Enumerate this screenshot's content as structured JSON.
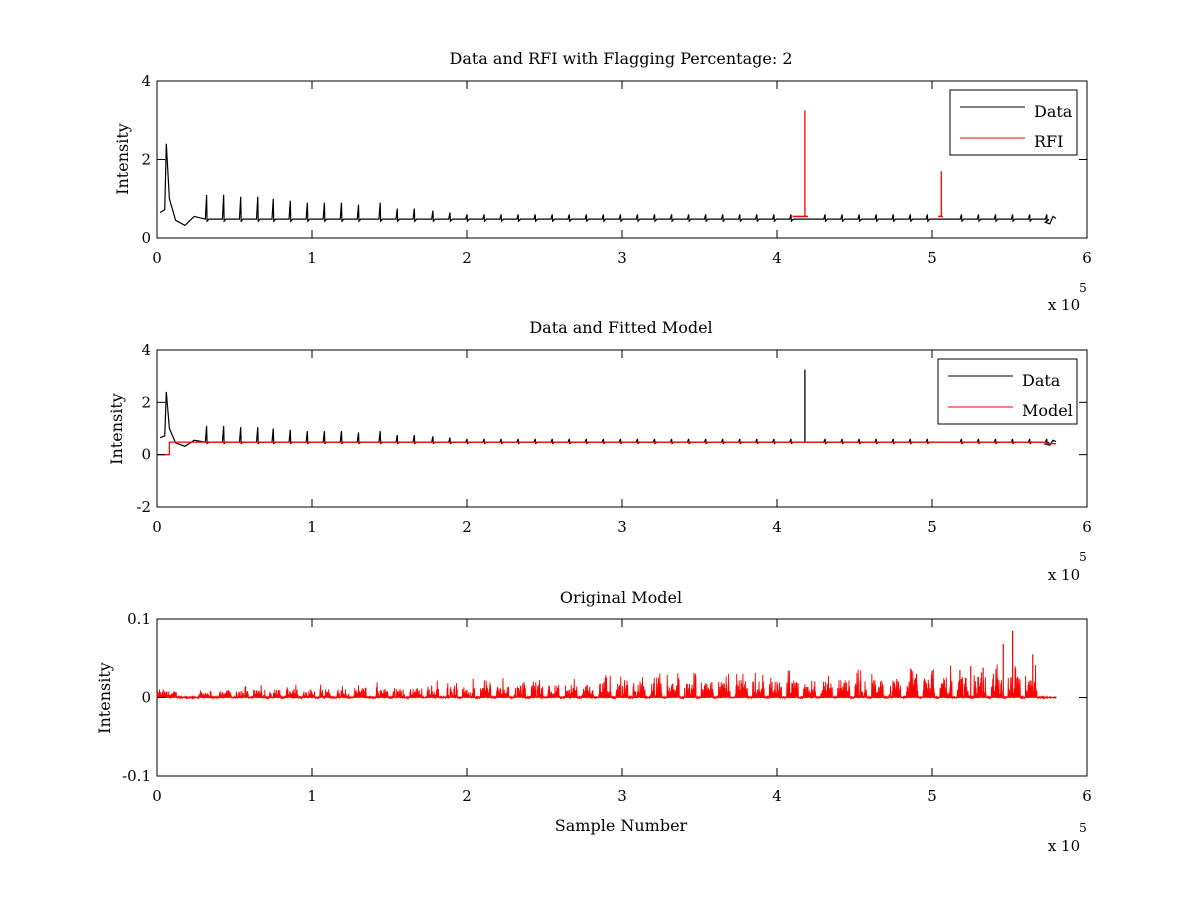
{
  "figure": {
    "background": "#ffffff",
    "colors": {
      "data": "#000000",
      "rfi": "#ff0000",
      "model": "#ff0000",
      "original": "#ff0000"
    }
  },
  "chart_data": [
    {
      "type": "line",
      "title": "Data and RFI with Flagging Percentage: 2",
      "xlabel": "",
      "ylabel": "Intensity",
      "xlim": [
        0,
        600000
      ],
      "ylim": [
        0,
        4
      ],
      "x_ticks": [
        0,
        1,
        2,
        3,
        4,
        5,
        6
      ],
      "x_multiplier": "x 10",
      "x_multiplier_exponent": "5",
      "y_ticks": [
        "0",
        "2",
        "4"
      ],
      "grid": false,
      "legend": {
        "placement": "top-right",
        "entries": [
          "Data",
          "RFI"
        ]
      },
      "series": [
        {
          "name": "Data",
          "color": "#000000",
          "baseline": 0.48,
          "features": [
            {
              "x": 2000,
              "y": 0.65
            },
            {
              "x": 5000,
              "y": 0.72
            },
            {
              "x": 6000,
              "y": 2.4
            },
            {
              "x": 8000,
              "y": 1.0
            },
            {
              "x": 12000,
              "y": 0.45
            },
            {
              "x": 18000,
              "y": 0.32
            },
            {
              "x": 24000,
              "y": 0.55
            }
          ],
          "spikes": [
            {
              "x": 32000,
              "y": 1.1
            },
            {
              "x": 43000,
              "y": 1.1
            },
            {
              "x": 54000,
              "y": 1.05
            },
            {
              "x": 65000,
              "y": 1.05
            },
            {
              "x": 75000,
              "y": 1.0
            },
            {
              "x": 86000,
              "y": 0.95
            },
            {
              "x": 97000,
              "y": 0.9
            },
            {
              "x": 108000,
              "y": 0.9
            },
            {
              "x": 119000,
              "y": 0.9
            },
            {
              "x": 130000,
              "y": 0.85
            },
            {
              "x": 144000,
              "y": 0.9
            },
            {
              "x": 155000,
              "y": 0.75
            },
            {
              "x": 166000,
              "y": 0.75
            },
            {
              "x": 178000,
              "y": 0.7
            },
            {
              "x": 189000,
              "y": 0.65
            },
            {
              "x": 200000,
              "y": 0.6
            },
            {
              "x": 211000,
              "y": 0.6
            },
            {
              "x": 222000,
              "y": 0.6
            },
            {
              "x": 233000,
              "y": 0.6
            },
            {
              "x": 244000,
              "y": 0.6
            },
            {
              "x": 255000,
              "y": 0.6
            },
            {
              "x": 266000,
              "y": 0.6
            },
            {
              "x": 277000,
              "y": 0.6
            },
            {
              "x": 288000,
              "y": 0.6
            },
            {
              "x": 299000,
              "y": 0.6
            },
            {
              "x": 310000,
              "y": 0.6
            },
            {
              "x": 321000,
              "y": 0.6
            },
            {
              "x": 332000,
              "y": 0.6
            },
            {
              "x": 343000,
              "y": 0.6
            },
            {
              "x": 354000,
              "y": 0.6
            },
            {
              "x": 365000,
              "y": 0.6
            },
            {
              "x": 376000,
              "y": 0.6
            },
            {
              "x": 387000,
              "y": 0.6
            },
            {
              "x": 398000,
              "y": 0.6
            },
            {
              "x": 409000,
              "y": 0.6
            },
            {
              "x": 431000,
              "y": 0.6
            },
            {
              "x": 442000,
              "y": 0.6
            },
            {
              "x": 453000,
              "y": 0.6
            },
            {
              "x": 464000,
              "y": 0.6
            },
            {
              "x": 475000,
              "y": 0.6
            },
            {
              "x": 486000,
              "y": 0.6
            },
            {
              "x": 497000,
              "y": 0.6
            },
            {
              "x": 519000,
              "y": 0.6
            },
            {
              "x": 530000,
              "y": 0.6
            },
            {
              "x": 541000,
              "y": 0.6
            },
            {
              "x": 552000,
              "y": 0.6
            },
            {
              "x": 563000,
              "y": 0.6
            },
            {
              "x": 574000,
              "y": 0.6
            }
          ],
          "end_features": [
            {
              "x": 573000,
              "y": 0.4
            },
            {
              "x": 576000,
              "y": 0.36
            },
            {
              "x": 578000,
              "y": 0.55
            },
            {
              "x": 580000,
              "y": 0.5
            }
          ]
        },
        {
          "name": "RFI",
          "color": "#ff0000",
          "segments": [
            {
              "x0": 410000,
              "x1": 420000
            },
            {
              "x0": 504000,
              "x1": 507000
            }
          ],
          "spikes": [
            {
              "x": 418000,
              "y": 3.25
            },
            {
              "x": 506000,
              "y": 1.7
            }
          ],
          "level": 0.55
        }
      ]
    },
    {
      "type": "line",
      "title": "Data and Fitted Model",
      "xlabel": "",
      "ylabel": "Intensity",
      "xlim": [
        0,
        600000
      ],
      "ylim": [
        -2,
        4
      ],
      "x_ticks": [
        0,
        1,
        2,
        3,
        4,
        5,
        6
      ],
      "x_multiplier": "x 10",
      "x_multiplier_exponent": "5",
      "y_ticks": [
        "-2",
        "0",
        "2",
        "4"
      ],
      "grid": false,
      "legend": {
        "placement": "top-right",
        "entries": [
          "Data",
          "Model"
        ]
      },
      "series": [
        {
          "name": "Data",
          "color": "#000000",
          "baseline": 0.48,
          "big_spike": {
            "x": 418000,
            "y": 3.25
          }
        },
        {
          "name": "Model",
          "color": "#ff0000",
          "steps": [
            {
              "x0": 0,
              "x1": 8000,
              "y": 0.0
            },
            {
              "x0": 8000,
              "x1": 573000,
              "y": 0.48
            },
            {
              "x0": 573000,
              "x1": 580000,
              "y": 0.42
            }
          ]
        }
      ]
    },
    {
      "type": "line",
      "title": "Original Model",
      "xlabel": "Sample Number",
      "ylabel": "Intensity",
      "xlim": [
        0,
        600000
      ],
      "ylim": [
        -0.1,
        0.1
      ],
      "x_ticks": [
        0,
        1,
        2,
        3,
        4,
        5,
        6
      ],
      "x_multiplier": "x 10",
      "x_multiplier_exponent": "5",
      "y_ticks": [
        "-0.1",
        "0",
        "0.1"
      ],
      "grid": false,
      "series": [
        {
          "name": "",
          "color": "#ff0000",
          "x_end": 580000,
          "burst_centers": [
            3000,
            9000,
            31000,
            44000,
            55000,
            66000,
            76000,
            87000,
            98000,
            109000,
            120000,
            131000,
            145000,
            156000,
            167000,
            178000,
            190000,
            201000,
            212000,
            223000,
            234000,
            245000,
            256000,
            267000,
            278000,
            289000,
            300000,
            311000,
            322000,
            333000,
            344000,
            355000,
            366000,
            377000,
            388000,
            399000,
            410000,
            421000,
            432000,
            443000,
            454000,
            465000,
            476000,
            487000,
            498000,
            509000,
            520000,
            531000,
            542000,
            553000,
            564000
          ],
          "large_spikes": [
            {
              "x": 546000,
              "y": 0.068
            },
            {
              "x": 552000,
              "y": 0.085
            },
            {
              "x": 565000,
              "y": 0.055
            },
            {
              "x": 525000,
              "y": 0.04
            },
            {
              "x": 533000,
              "y": 0.038
            },
            {
              "x": 518000,
              "y": 0.035
            },
            {
              "x": 500000,
              "y": 0.034
            },
            {
              "x": 490000,
              "y": 0.03
            }
          ]
        }
      ]
    }
  ]
}
